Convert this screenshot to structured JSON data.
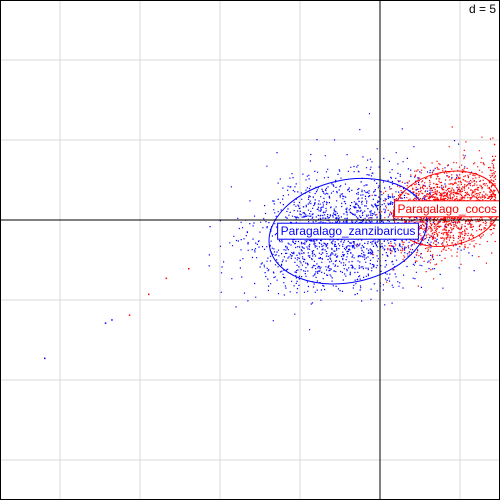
{
  "chart_data": {
    "type": "scatter",
    "title": "",
    "xlabel": "",
    "ylabel": "",
    "grid": true,
    "grid_step": 5,
    "xlim": [
      -23.75,
      7.5
    ],
    "ylim": [
      -17.5,
      13.75
    ],
    "scale_label": "d = 5",
    "axes_cross": [
      0,
      0
    ],
    "groups": [
      {
        "name": "Paragalago_cocos",
        "color": "#ff0000",
        "center": [
          4.2,
          0.7
        ],
        "spread": [
          3.4,
          2.3
        ],
        "seed": 7,
        "n": 1700
      },
      {
        "name": "Paragalago_zanzibaricus",
        "color": "#0000ff",
        "center": [
          -2.0,
          -0.7
        ],
        "spread": [
          5.0,
          3.2
        ],
        "seed": 13,
        "n": 1900
      }
    ],
    "outlier_points": [
      {
        "group": "Paragalago_zanzibaricus",
        "x": -21.0,
        "y": -8.6
      },
      {
        "group": "Paragalago_zanzibaricus",
        "x": -17.2,
        "y": -6.4
      },
      {
        "group": "Paragalago_zanzibaricus",
        "x": -16.8,
        "y": -6.2
      },
      {
        "group": "Paragalago_cocos",
        "x": -15.7,
        "y": -5.9
      },
      {
        "group": "Paragalago_cocos",
        "x": -14.5,
        "y": -4.6
      },
      {
        "group": "Paragalago_cocos",
        "x": -13.4,
        "y": -3.6
      },
      {
        "group": "Paragalago_cocos",
        "x": -12.0,
        "y": -3.0
      }
    ]
  }
}
